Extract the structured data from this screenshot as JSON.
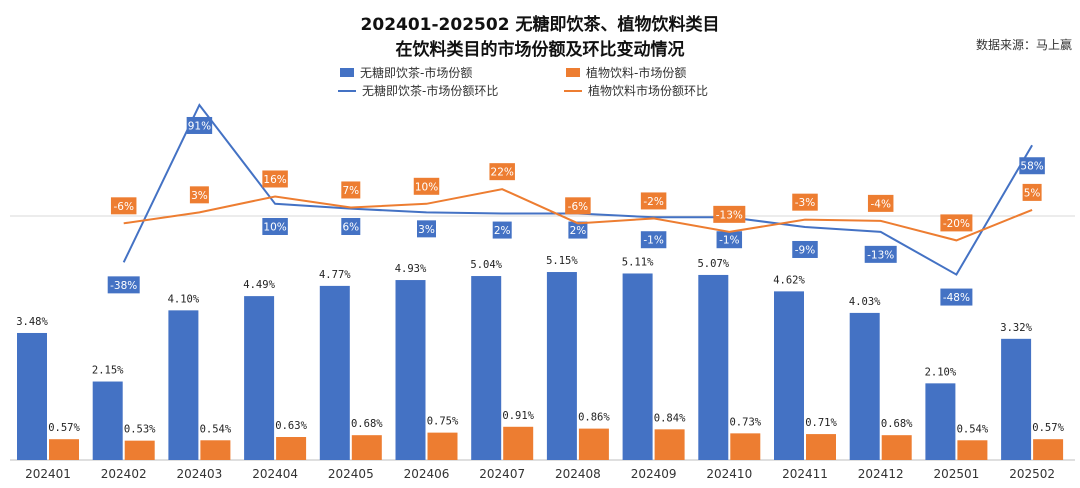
{
  "chart_data": {
    "type": "bar+line",
    "title_line1": "202401-202502 无糖即饮茶、植物饮料类目",
    "title_line2": "在饮料类目的市场份额及环比变动情况",
    "source": "数据来源：马上赢",
    "categories": [
      "202401",
      "202402",
      "202403",
      "202404",
      "202405",
      "202406",
      "202407",
      "202408",
      "202409",
      "202410",
      "202411",
      "202412",
      "202501",
      "202502"
    ],
    "series": [
      {
        "name": "无糖即饮茶-市场份额",
        "type": "bar",
        "color": "#4472C4",
        "values": [
          3.48,
          2.15,
          4.1,
          4.49,
          4.77,
          4.93,
          5.04,
          5.15,
          5.11,
          5.07,
          4.62,
          4.03,
          2.1,
          3.32
        ],
        "labels": [
          "3.48%",
          "2.15%",
          "4.10%",
          "4.49%",
          "4.77%",
          "4.93%",
          "5.04%",
          "5.15%",
          "5.11%",
          "5.07%",
          "4.62%",
          "4.03%",
          "2.10%",
          "3.32%"
        ]
      },
      {
        "name": "植物饮料-市场份额",
        "type": "bar",
        "color": "#ED7D31",
        "values": [
          0.57,
          0.53,
          0.54,
          0.63,
          0.68,
          0.75,
          0.91,
          0.86,
          0.84,
          0.73,
          0.71,
          0.68,
          0.54,
          0.57
        ],
        "labels": [
          "0.57%",
          "0.53%",
          "0.54%",
          "0.63%",
          "0.68%",
          "0.75%",
          "0.91%",
          "0.86%",
          "0.84%",
          "0.73%",
          "0.71%",
          "0.68%",
          "0.54%",
          "0.57%"
        ]
      },
      {
        "name": "无糖即饮茶-市场份额环比",
        "type": "line",
        "color": "#4472C4",
        "values": [
          null,
          -38,
          91,
          10,
          6,
          3,
          2,
          2,
          -1,
          -1,
          -9,
          -13,
          -48,
          58
        ],
        "labels": [
          "",
          "-38%",
          "91%",
          "10%",
          "6%",
          "3%",
          "2%",
          "2%",
          "-1%",
          "-1%",
          "-9%",
          "-13%",
          "-48%",
          "58%"
        ]
      },
      {
        "name": "植物饮料市场份额环比",
        "type": "line",
        "color": "#ED7D31",
        "values": [
          null,
          -6,
          3,
          16,
          7,
          10,
          22,
          -6,
          -2,
          -13,
          -3,
          -4,
          -20,
          5
        ],
        "labels": [
          "",
          "-6%",
          "3%",
          "16%",
          "7%",
          "10%",
          "22%",
          "-6%",
          "-2%",
          "-13%",
          "-3%",
          "-4%",
          "-20%",
          "5%"
        ]
      }
    ],
    "unit": "%"
  }
}
